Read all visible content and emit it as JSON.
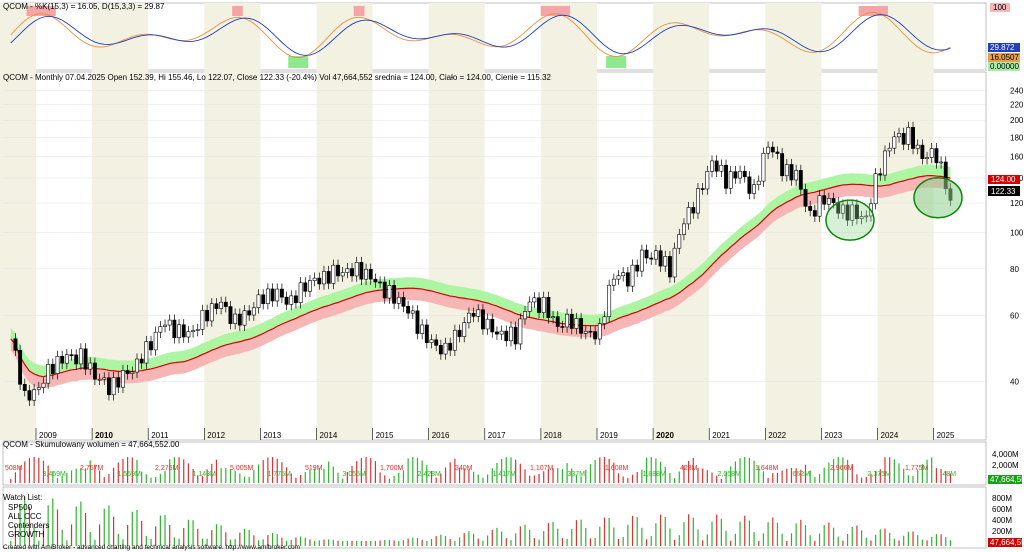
{
  "stoch_panel": {
    "title": "QCOM - %K(15,3) = 16.05, D(15,3,3) = 29.87",
    "scale_labels": [
      "100",
      "0.00000"
    ],
    "value_badges": [
      {
        "text": "29.872",
        "color": "#1f3fbf"
      },
      {
        "text": "16.0507",
        "color": "#e8a04a"
      },
      {
        "text": "0.00000",
        "color": "#a8eca8"
      }
    ]
  },
  "price_panel": {
    "title": "QCOM - Monthly 07.04.2025 Open 152.39, Hi 155.46, Lo 122.07, Close 122.33 (-20.4%) Vol 47,664,552 srednia = 124.00, Ciało = 124.00, Cienie = 115.32",
    "y_labels": [
      "240",
      "220",
      "200",
      "180",
      "160",
      "140",
      "120",
      "100",
      "80",
      "60",
      "40"
    ],
    "value_badges": [
      {
        "text": "124.00",
        "color": "#d40000"
      },
      {
        "text": "122.33",
        "color": "#000000"
      }
    ]
  },
  "x_axis": {
    "years": [
      "2009",
      "2010",
      "2011",
      "2012",
      "2013",
      "2014",
      "2015",
      "2016",
      "2017",
      "2018",
      "2019",
      "2020",
      "2021",
      "2022",
      "2023",
      "2024",
      "2025"
    ],
    "bold_years": [
      "2010",
      "2020"
    ]
  },
  "volume_panel": {
    "title": "QCOM - Skumulowany wolumen = 47,664,552.00",
    "labels": [
      "508M",
      "3,459M",
      "2,767M",
      "1,559M",
      "2,276M",
      "1,148M",
      "5,005M",
      "1,775M",
      "519M",
      "3,055M",
      "1,700M",
      "2,428M",
      "340M",
      "1,417M",
      "1,107M",
      "337M",
      "1,608M",
      "1,888M",
      "423M",
      "2,058M",
      "1,648M",
      "662M",
      "2,966M",
      "2,375M",
      "1,775M",
      "48M"
    ],
    "y_labels": [
      "4,000M",
      "2,000M"
    ],
    "badge": "47,664,552"
  },
  "bottom_panel": {
    "watch_list": [
      "Watch List:",
      "SP500",
      "ALL CCC",
      "Contenders",
      "GROWTH"
    ],
    "y_labels": [
      "800M",
      "600M",
      "400M",
      "200M"
    ],
    "badge": "47,664,552"
  },
  "footer": "Created with AmiBroker - advanced charting and technical analysis software. http://www.amibroker.com",
  "chart_data": {
    "type": "candlestick",
    "title": "QCOM - Monthly",
    "scale": "log",
    "ylim": [
      30,
      250
    ],
    "x_range": [
      "2008-07",
      "2025-05"
    ],
    "ohlc_last": {
      "date": "07.04.2025",
      "open": 152.39,
      "high": 155.46,
      "low": 122.07,
      "close": 122.33
    },
    "volume_last": 47664552,
    "series": [
      {
        "name": "Close (approx, monthly)",
        "x": [
          "2008-07",
          "2008-10",
          "2009-01",
          "2009-04",
          "2009-07",
          "2009-10",
          "2010-01",
          "2010-04",
          "2010-07",
          "2010-10",
          "2011-01",
          "2011-04",
          "2011-07",
          "2011-10",
          "2012-01",
          "2012-04",
          "2012-07",
          "2012-10",
          "2013-01",
          "2013-04",
          "2013-07",
          "2013-10",
          "2014-01",
          "2014-04",
          "2014-07",
          "2014-10",
          "2015-01",
          "2015-04",
          "2015-07",
          "2015-10",
          "2016-01",
          "2016-04",
          "2016-07",
          "2016-10",
          "2017-01",
          "2017-04",
          "2017-07",
          "2017-10",
          "2018-01",
          "2018-04",
          "2018-07",
          "2018-10",
          "2019-01",
          "2019-04",
          "2019-07",
          "2019-10",
          "2020-01",
          "2020-04",
          "2020-07",
          "2020-10",
          "2021-01",
          "2021-04",
          "2021-07",
          "2021-10",
          "2022-01",
          "2022-04",
          "2022-07",
          "2022-10",
          "2023-01",
          "2023-04",
          "2023-07",
          "2023-10",
          "2024-01",
          "2024-04",
          "2024-07",
          "2024-10",
          "2025-01",
          "2025-04"
        ],
        "values": [
          52,
          36,
          39,
          44,
          46,
          47,
          42,
          38,
          41,
          45,
          51,
          57,
          54,
          55,
          61,
          64,
          58,
          62,
          67,
          68,
          66,
          73,
          74,
          78,
          80,
          79,
          73,
          69,
          65,
          56,
          50,
          49,
          55,
          61,
          56,
          54,
          53,
          65,
          64,
          57,
          58,
          53,
          55,
          78,
          74,
          86,
          88,
          80,
          106,
          125,
          157,
          138,
          143,
          129,
          175,
          147,
          141,
          112,
          125,
          114,
          113,
          111,
          150,
          178,
          183,
          162,
          160,
          122
        ]
      },
      {
        "name": "srednia",
        "values_hint": "moving average, last = 124.00"
      }
    ],
    "ma_last": 124.0,
    "body_band_last": 124.0,
    "shadow_band_last": 115.32,
    "stochastic": {
      "k": 16.05,
      "d": 29.87,
      "params": "K(15,3), D(15,3,3)"
    },
    "volume_cumulative": 47664552.0
  }
}
